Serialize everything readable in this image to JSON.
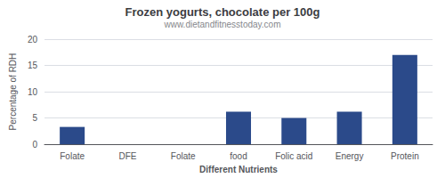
{
  "chart_data": {
    "type": "bar",
    "title": "Frozen yogurts, chocolate per 100g",
    "subtitle": "www.dietandfitnesstoday.com",
    "xlabel": "Different Nutrients",
    "ylabel": "Percentage of RDH",
    "categories": [
      "Folate",
      "DFE",
      "Folate",
      "food",
      "Folic acid",
      "Energy",
      "Protein"
    ],
    "values": [
      3.3,
      0.0,
      0.0,
      6.2,
      5.0,
      6.2,
      17.0
    ],
    "color": "#2b4a8a",
    "ylim": [
      0,
      20
    ],
    "yticks": [
      0,
      5,
      10,
      15,
      20
    ],
    "grid": true
  }
}
